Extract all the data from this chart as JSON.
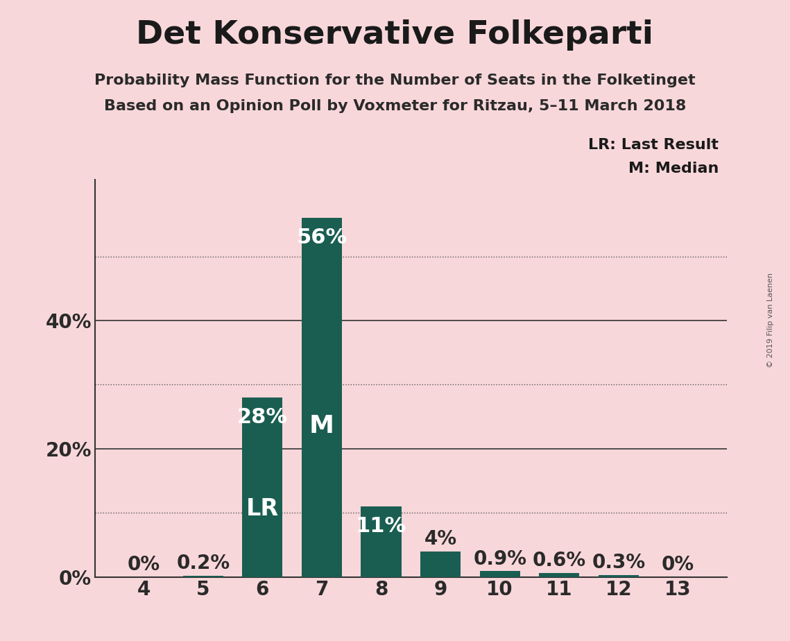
{
  "title": "Det Konservative Folkeparti",
  "subtitle1": "Probability Mass Function for the Number of Seats in the Folketinget",
  "subtitle2": "Based on an Opinion Poll by Voxmeter for Ritzau, 5–11 March 2018",
  "copyright": "© 2019 Filip van Laenen",
  "categories": [
    4,
    5,
    6,
    7,
    8,
    9,
    10,
    11,
    12,
    13
  ],
  "values": [
    0.0,
    0.2,
    28.0,
    56.0,
    11.0,
    4.0,
    0.9,
    0.6,
    0.3,
    0.0
  ],
  "labels": [
    "0%",
    "0.2%",
    "28%",
    "56%",
    "11%",
    "4%",
    "0.9%",
    "0.6%",
    "0.3%",
    "0%"
  ],
  "bar_color": "#1a5e52",
  "background_color": "#f8d7da",
  "label_color_inside": "#ffffff",
  "label_color_outside": "#2a2a2a",
  "lr_bar": 6,
  "median_bar": 7,
  "yticks_labeled": [
    0,
    20,
    40
  ],
  "yticks_dotted": [
    10,
    30,
    50
  ],
  "ylim": [
    0,
    62
  ],
  "legend_text1": "LR: Last Result",
  "legend_text2": "M: Median",
  "title_fontsize": 34,
  "subtitle_fontsize": 16,
  "axis_fontsize": 20,
  "bar_label_fontsize": 20,
  "bar_label_large_fontsize": 22,
  "lr_m_fontsize": 24
}
